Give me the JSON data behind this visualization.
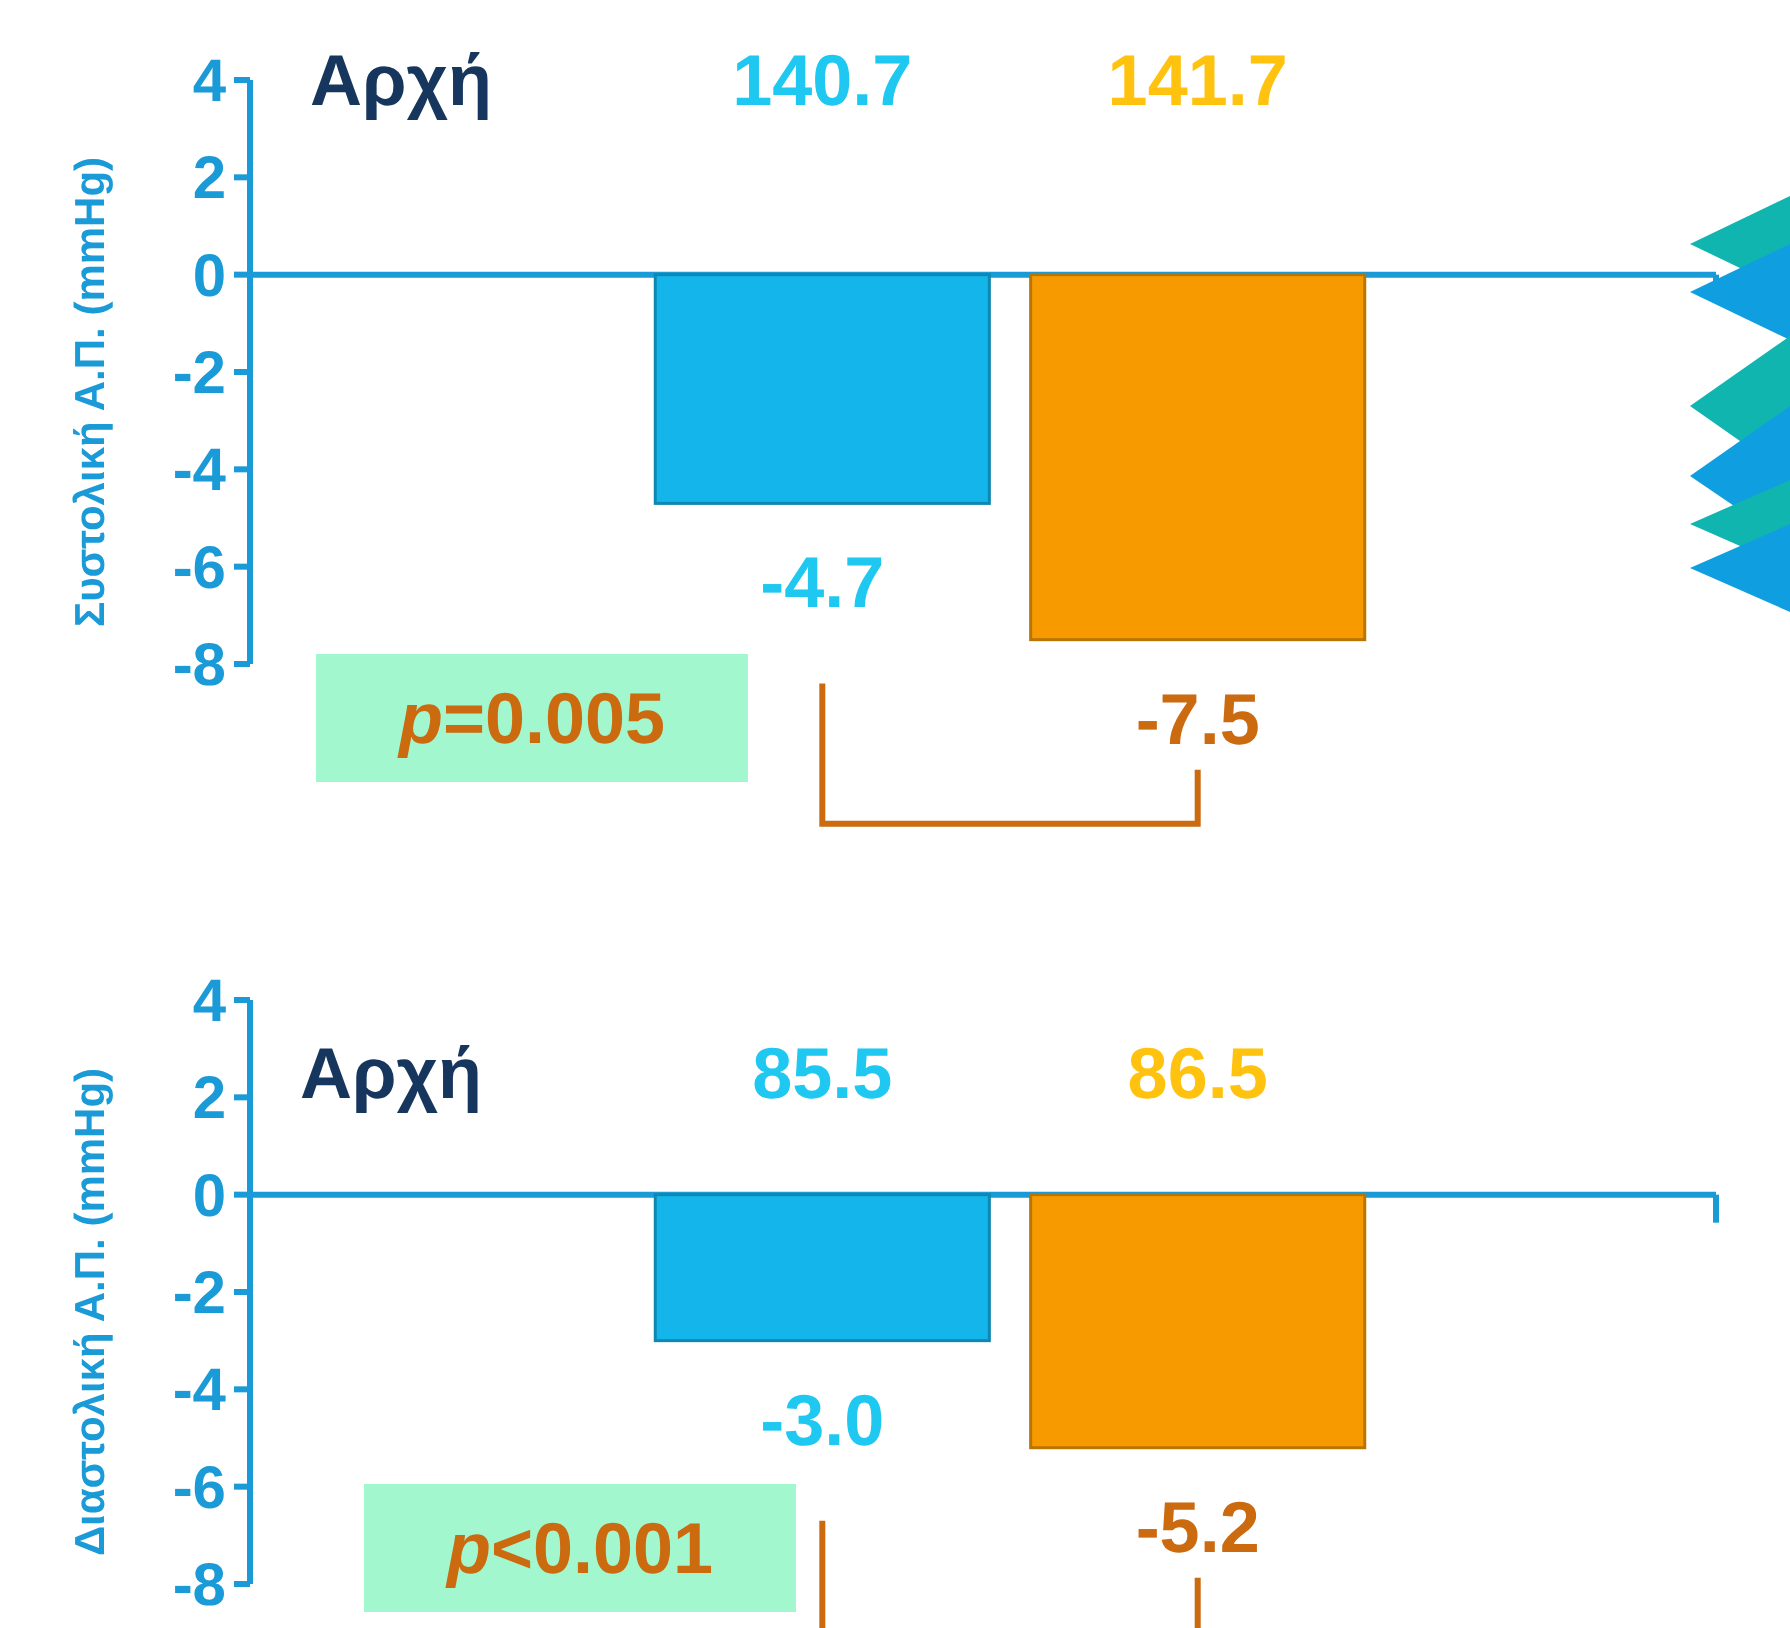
{
  "chart_data": [
    {
      "type": "bar",
      "categories": [
        null,
        null
      ],
      "values": [
        -4.7,
        -7.5
      ],
      "colors": [
        "#13b5ea",
        "#f79a00"
      ],
      "ylim": [
        -8,
        4
      ],
      "yticks": [
        -8,
        -6,
        -4,
        -2,
        0,
        2,
        4
      ],
      "ylabel": "Συστολική Α.Π. (mmHg)",
      "value_labels": [
        "-4.7",
        "-7.5"
      ],
      "ref_lines": [
        {
          "axis": "y",
          "value": 0,
          "color": "#1a9ad6"
        }
      ],
      "annotations": [
        "Αρχή",
        "140.7",
        "141.7",
        "p=0.005"
      ]
    },
    {
      "type": "bar",
      "categories": [
        null,
        null
      ],
      "values": [
        -3.0,
        -5.2
      ],
      "colors": [
        "#13b5ea",
        "#f79a00"
      ],
      "ylim": [
        -8,
        4
      ],
      "yticks": [
        -8,
        -6,
        -4,
        -2,
        0,
        2,
        4
      ],
      "ylabel": "Διαστολική Α.Π. (mmHg)",
      "value_labels": [
        "-3.0",
        "-5.2"
      ],
      "ref_lines": [
        {
          "axis": "y",
          "value": 0,
          "color": "#1a9ad6"
        }
      ],
      "annotations": [
        "Αρχή",
        "85.5",
        "86.5",
        "p<0.001"
      ]
    }
  ]
}
